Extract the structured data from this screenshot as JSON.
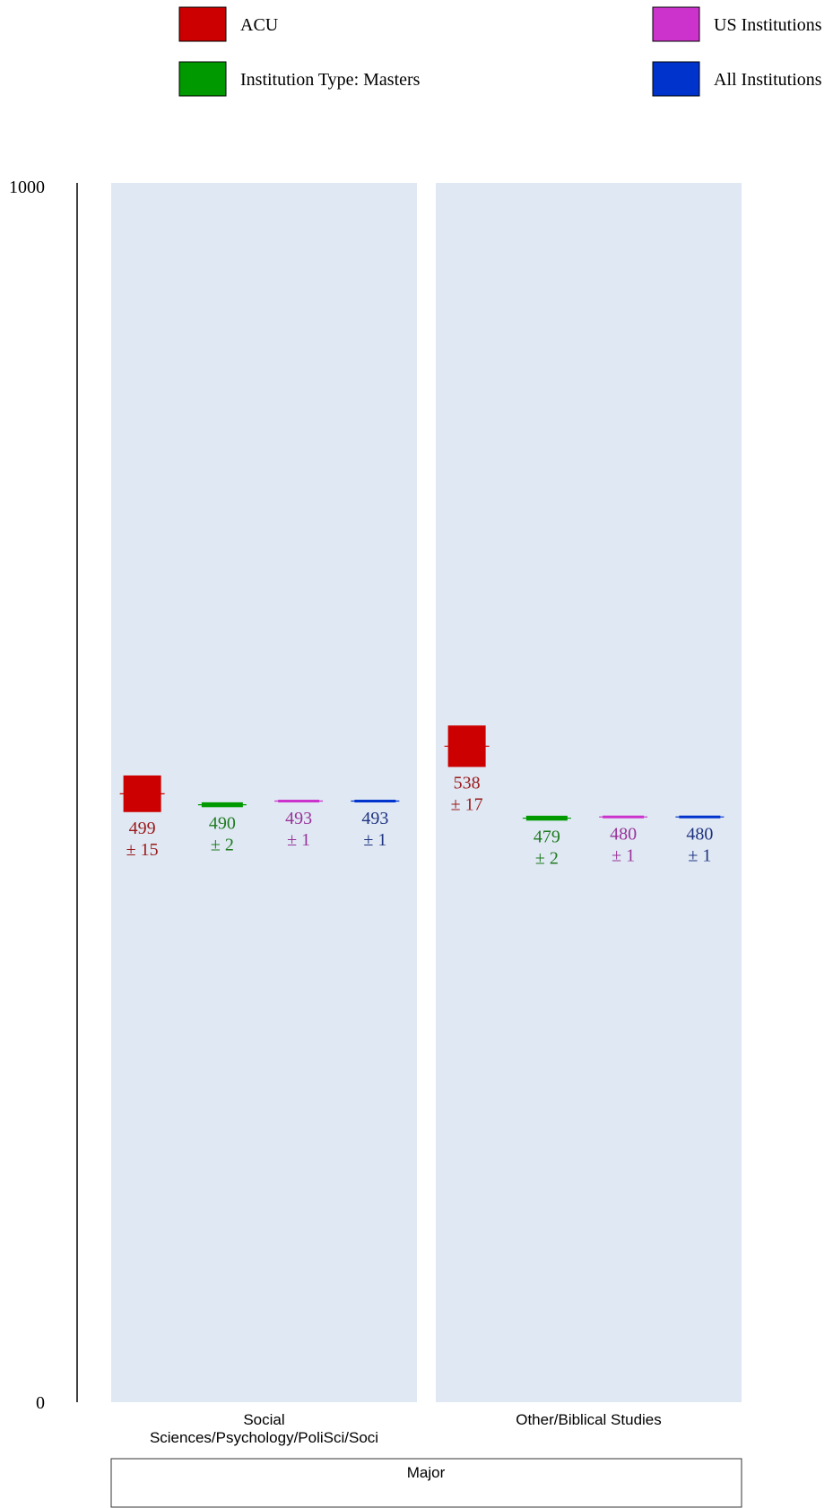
{
  "chart_data": {
    "type": "scatter",
    "ylim": [
      0,
      1000
    ],
    "ytick_labels": [
      "1000",
      "0"
    ],
    "xlabel": "Major",
    "legend_position": "top",
    "categories": [
      "Social Sciences/Psychology/PoliSci/Soci",
      "Other/Biblical Studies"
    ],
    "category_lines": [
      [
        "Social",
        "Sciences/Psychology/PoliSci/Soci"
      ],
      [
        "Other/Biblical Studies"
      ]
    ],
    "series": [
      {
        "name": "ACU",
        "color": "#cc0000",
        "label_color": "#9a1a1a",
        "values": [
          499,
          538
        ],
        "errors": [
          15,
          17
        ]
      },
      {
        "name": "Institution Type: Masters",
        "color": "#009900",
        "label_color": "#1f7a1f",
        "values": [
          490,
          479
        ],
        "errors": [
          2,
          2
        ]
      },
      {
        "name": "US Institutions",
        "color": "#cc33cc",
        "label_color": "#993399",
        "values": [
          493,
          480
        ],
        "errors": [
          1,
          1
        ]
      },
      {
        "name": "All Institutions",
        "color": "#0033cc",
        "label_color": "#1f3380",
        "values": [
          493,
          480
        ],
        "errors": [
          1,
          1
        ]
      }
    ],
    "panel_color": "#dfe8f3"
  }
}
